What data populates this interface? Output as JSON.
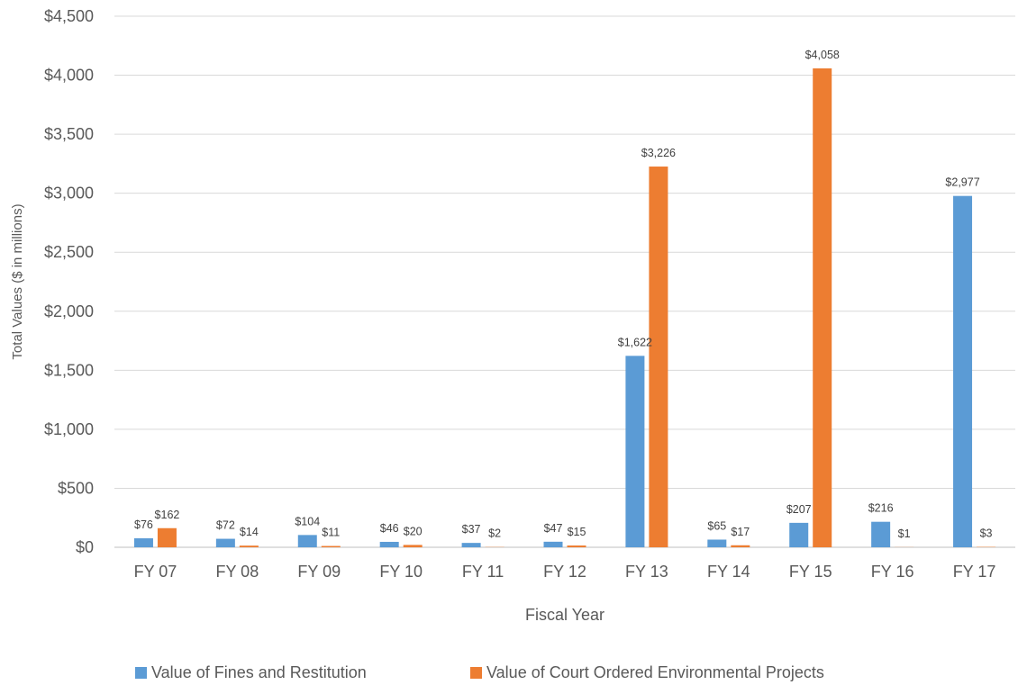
{
  "chart_data": {
    "type": "bar",
    "xlabel": "Fiscal Year",
    "ylabel": "Total Values ($ in millions)",
    "ylim": [
      0,
      4500
    ],
    "y_tick_values": [
      0,
      500,
      1000,
      1500,
      2000,
      2500,
      3000,
      3500,
      4000,
      4500
    ],
    "y_tick_labels": [
      "$0",
      "$500",
      "$1,000",
      "$1,500",
      "$2,000",
      "$2,500",
      "$3,000",
      "$3,500",
      "$4,000",
      "$4,500"
    ],
    "categories": [
      "FY 07",
      "FY 08",
      "FY 09",
      "FY 10",
      "FY 11",
      "FY 12",
      "FY 13",
      "FY 14",
      "FY 15",
      "FY 16",
      "FY 17"
    ],
    "grid": true,
    "legend_position": "bottom",
    "series": [
      {
        "name": "Value of Fines and Restitution",
        "color": "#5b9bd5",
        "values": [
          76,
          72,
          104,
          46,
          37,
          47,
          1622,
          65,
          207,
          216,
          2977
        ],
        "labels": [
          "$76",
          "$72",
          "$104",
          "$46",
          "$37",
          "$47",
          "$1,622",
          "$65",
          "$207",
          "$216",
          "$2,977"
        ]
      },
      {
        "name": "Value of Court Ordered Environmental Projects",
        "color": "#ed7d31",
        "values": [
          162,
          14,
          11,
          20,
          2,
          15,
          3226,
          17,
          4058,
          1,
          3
        ],
        "labels": [
          "$162",
          "$14",
          "$11",
          "$20",
          "$2",
          "$15",
          "$3,226",
          "$17",
          "$4,058",
          "$1",
          "$3"
        ]
      }
    ]
  }
}
